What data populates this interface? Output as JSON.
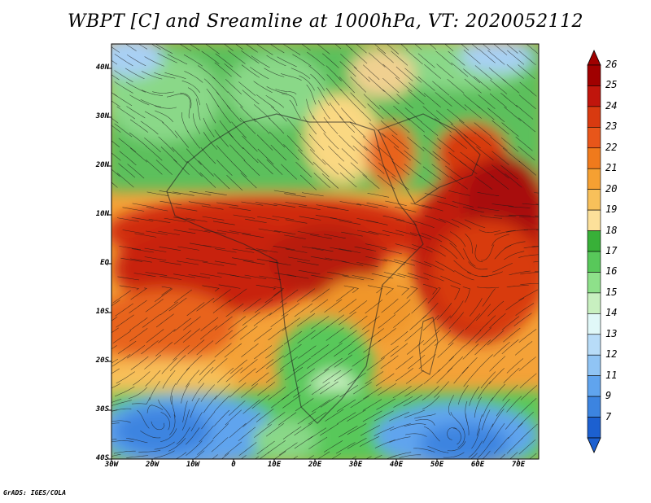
{
  "title": "WBPT [C] and Sreamline at 1000hPa, VT: 2020052112",
  "footer": "GrADS: IGES/COLA",
  "lat_labels": [
    "40N",
    "30N",
    "20N",
    "10N",
    "EQ",
    "10S",
    "20S",
    "30S",
    "40S"
  ],
  "lat_values": [
    40,
    30,
    20,
    10,
    0,
    -10,
    -20,
    -30,
    -40
  ],
  "lon_labels": [
    "30W",
    "20W",
    "10W",
    "0",
    "10E",
    "20E",
    "30E",
    "40E",
    "50E",
    "60E",
    "70E"
  ],
  "lon_values": [
    -30,
    -20,
    -10,
    0,
    10,
    20,
    30,
    40,
    50,
    60,
    70
  ],
  "colorbar": {
    "labels": [
      "26",
      "25",
      "24",
      "23",
      "22",
      "21",
      "20",
      "19",
      "18",
      "17",
      "16",
      "15",
      "14",
      "13",
      "12",
      "11",
      "9",
      "7"
    ],
    "colors": [
      "#a00000",
      "#c0150c",
      "#d83a10",
      "#e8561a",
      "#f07a1c",
      "#f5a032",
      "#f8c05a",
      "#fce09a",
      "#38b038",
      "#58c85a",
      "#8ee08a",
      "#c8f0c0",
      "#e0f8f8",
      "#b8dcf8",
      "#90c4f4",
      "#60a4ee",
      "#3c84e0",
      "#1c60d0"
    ]
  },
  "colors": {
    "red_dark": "#a8100c",
    "red": "#c8240e",
    "orange": "#e8641c",
    "orange_light": "#f4a238",
    "yellow": "#fad882",
    "green": "#44b444",
    "green_light": "#8ad888",
    "blue_light": "#a8d0f4",
    "blue": "#3c84e0"
  }
}
